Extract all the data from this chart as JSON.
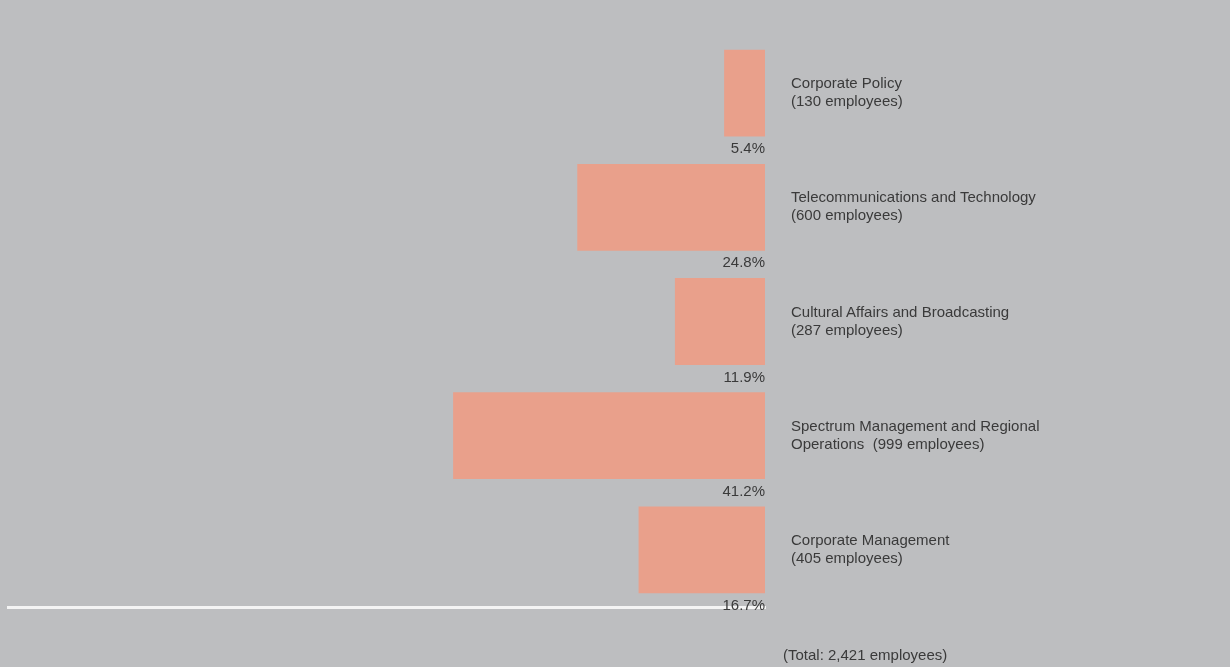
{
  "chart_data": {
    "type": "bar",
    "orientation": "horizontal",
    "categories": [
      "Corporate Policy\n(130 employees)",
      "Telecommunications and Technology\n(600 employees)",
      "Cultural Affairs and Broadcasting\n(287 employees)",
      "Spectrum Management and Regional\nOperations  (999 employees)",
      "Corporate Management\n(405 employees)"
    ],
    "values": [
      5.4,
      24.8,
      11.9,
      41.2,
      16.7
    ],
    "value_labels": [
      "5.4%",
      "24.8%",
      "11.9%",
      "41.2%",
      "16.7%"
    ],
    "color": "#e9a08b",
    "xlim": [
      100,
      0
    ],
    "legend": false,
    "annotations": [
      "(Total: 2,421 employees)"
    ]
  }
}
